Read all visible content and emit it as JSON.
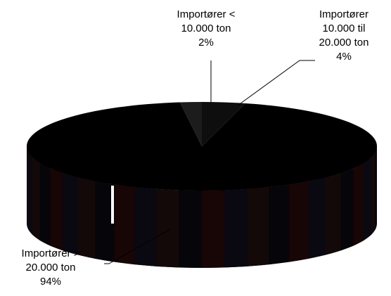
{
  "chart_data": {
    "type": "pie",
    "style": "3d",
    "slices": [
      {
        "label_lines": [
          "Importører <",
          "10.000 ton",
          "2%"
        ],
        "value": 2,
        "color": "#1c1c1c"
      },
      {
        "label_lines": [
          "Importører",
          "10.000 til",
          "20.000 ton",
          "4%"
        ],
        "value": 4,
        "color": "#0e0e0e"
      },
      {
        "label_lines": [
          "Importører  >",
          "20.000 ton",
          "94%"
        ],
        "value": 94,
        "color": "#000000"
      }
    ],
    "legend": "none",
    "side_colors": [
      "#1a0505",
      "#0a0a14",
      "#140a0a",
      "#05050a"
    ]
  }
}
